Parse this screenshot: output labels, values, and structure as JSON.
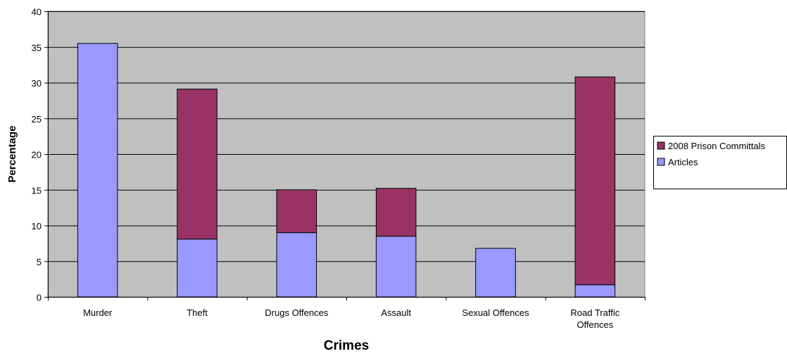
{
  "chart_data": {
    "type": "bar",
    "stacked": true,
    "title": "",
    "xlabel": "Crimes",
    "ylabel": "Percentage",
    "ylim": [
      0,
      40
    ],
    "yticks": [
      0,
      5,
      10,
      15,
      20,
      25,
      30,
      35,
      40
    ],
    "grid": true,
    "legend_position": "right",
    "categories": [
      [
        "Murder"
      ],
      [
        "Theft"
      ],
      [
        "Drugs Offences"
      ],
      [
        "Assault"
      ],
      [
        "Sexual Offences"
      ],
      [
        "Road Traffic",
        "Offences"
      ]
    ],
    "series": [
      {
        "name": "Articles",
        "color": "#9999FF",
        "values": [
          35.5,
          8.1,
          9.0,
          8.5,
          6.8,
          1.7
        ]
      },
      {
        "name": "2008 Prison Committals",
        "color": "#993366",
        "values": [
          0,
          21.0,
          6.0,
          6.7,
          0,
          29.1
        ]
      }
    ],
    "legend_order": [
      "2008 Prison Committals",
      "Articles"
    ],
    "plot_background": "#C0C0C0"
  }
}
